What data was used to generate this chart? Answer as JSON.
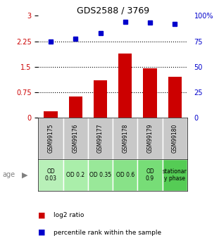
{
  "title": "GDS2588 / 3769",
  "samples": [
    "GSM99175",
    "GSM99176",
    "GSM99177",
    "GSM99178",
    "GSM99179",
    "GSM99180"
  ],
  "log2_ratio": [
    0.2,
    0.62,
    1.1,
    1.9,
    1.45,
    1.2
  ],
  "percentile_rank": [
    2.25,
    2.32,
    2.5,
    2.83,
    2.8,
    2.77
  ],
  "age_labels": [
    "OD\n0.03",
    "OD 0.2",
    "OD 0.35",
    "OD 0.6",
    "OD\n0.9",
    "stationar\ny phase"
  ],
  "bar_color": "#cc0000",
  "dot_color": "#0000cc",
  "ylim_left": [
    0,
    3
  ],
  "ylim_right": [
    0,
    100
  ],
  "yticks_left": [
    0,
    0.75,
    1.5,
    2.25,
    3
  ],
  "yticks_right": [
    0,
    25,
    50,
    75,
    100
  ],
  "ytick_labels_left": [
    "0",
    "0.75",
    "1.5",
    "2.25",
    "3"
  ],
  "ytick_labels_right": [
    "0",
    "25",
    "50",
    "75",
    "100%"
  ],
  "hlines": [
    0.75,
    1.5,
    2.25
  ],
  "legend_log2": "log2 ratio",
  "legend_pct": "percentile rank within the sample",
  "sample_bg_color": "#c8c8c8",
  "age_bg_colors": [
    "#b8f0b8",
    "#aaeeaa",
    "#99e899",
    "#88e288",
    "#77dd77",
    "#55cc55"
  ],
  "white_bg": "#ffffff"
}
